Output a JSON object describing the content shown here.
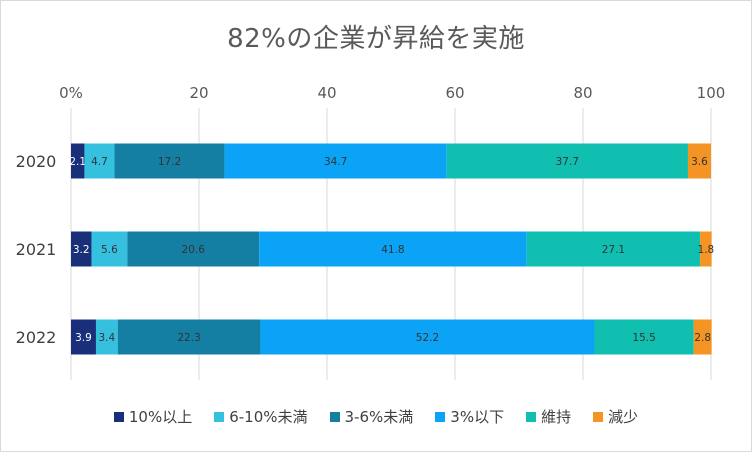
{
  "chart_data": {
    "type": "bar",
    "orientation": "horizontal",
    "stacked": true,
    "title": "82%の企業が昇給を実施",
    "categories": [
      "2020",
      "2021",
      "2022"
    ],
    "xlim": [
      0,
      100
    ],
    "x_ticks": [
      "0%",
      "20",
      "40",
      "60",
      "80",
      "100"
    ],
    "grid": true,
    "legend_position": "bottom",
    "series": [
      {
        "name": "10%以上",
        "color": "#1a2f7a",
        "values": [
          2.1,
          3.2,
          3.9
        ]
      },
      {
        "name": "6-10%未満",
        "color": "#36c0e0",
        "values": [
          4.7,
          5.6,
          3.4
        ]
      },
      {
        "name": "3-6%未満",
        "color": "#157fa3",
        "values": [
          17.2,
          20.6,
          22.3
        ]
      },
      {
        "name": "3%以下",
        "color": "#0aa3f5",
        "values": [
          34.7,
          41.8,
          52.2
        ]
      },
      {
        "name": "維持",
        "color": "#10bfb0",
        "values": [
          37.7,
          27.1,
          15.5
        ]
      },
      {
        "name": "減少",
        "color": "#f39424",
        "values": [
          3.6,
          1.8,
          2.8
        ]
      }
    ]
  }
}
